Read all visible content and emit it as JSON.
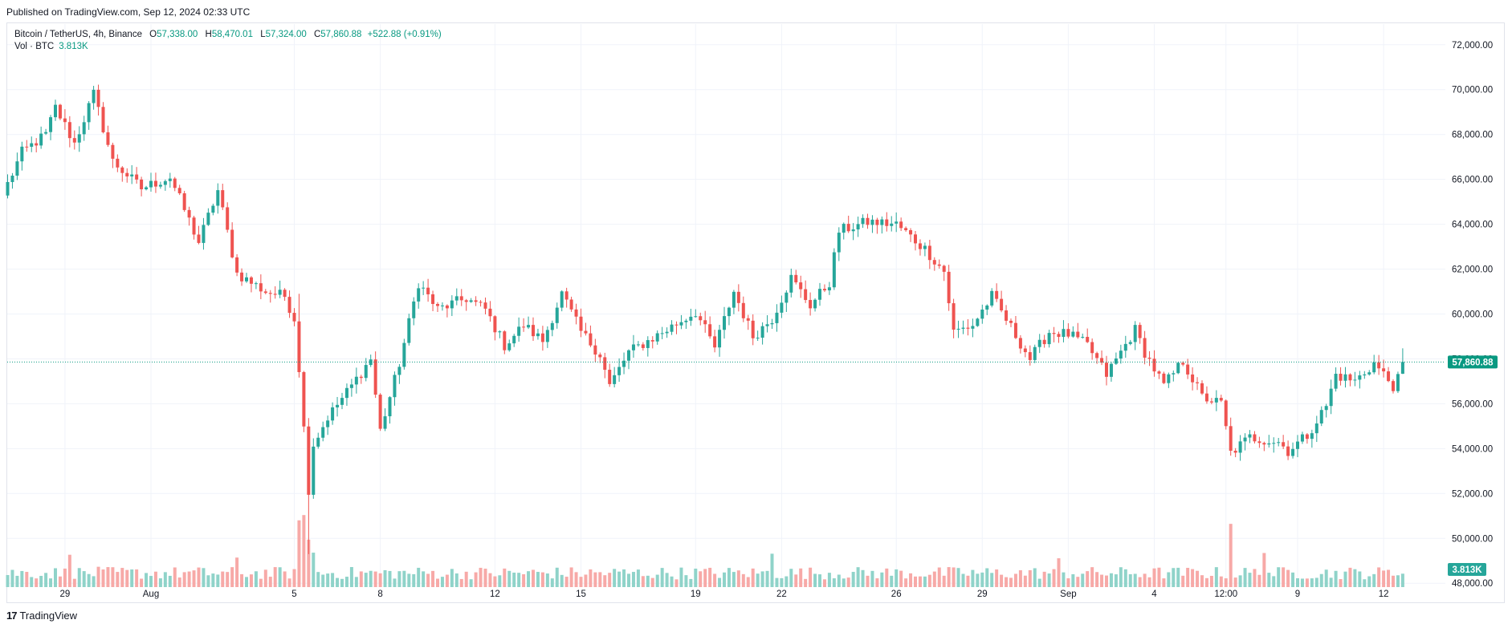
{
  "header": {
    "published": "Published on TradingView.com, Sep 12, 2024 02:33 UTC"
  },
  "legend": {
    "symbol": "Bitcoin / TetherUS, 4h, Binance",
    "open_label": "O",
    "open": "57,338.00",
    "high_label": "H",
    "high": "58,470.01",
    "low_label": "L",
    "low": "57,324.00",
    "close_label": "C",
    "close": "57,860.88",
    "change": "+522.88 (+0.91%)",
    "vol_title": "Vol · BTC",
    "vol_value": "3.813K"
  },
  "footer": {
    "logo_mark": "17",
    "brand": "TradingView"
  },
  "colors": {
    "up": "#26a69a",
    "down": "#ef5350",
    "vol_up": "#8fd3c9",
    "vol_down": "#f7a9a7",
    "grid": "#f0f3fa",
    "axis_text": "#131722",
    "last_price": "#089981"
  },
  "chart_data": {
    "type": "candlestick",
    "title": "Bitcoin / TetherUS, 4h, Binance",
    "interval": "4h",
    "y_axis": {
      "position": "right",
      "ticks": [
        48000,
        50000,
        52000,
        54000,
        56000,
        58000,
        60000,
        62000,
        64000,
        66000,
        68000,
        70000,
        72000
      ],
      "tick_labels": [
        "48,000.00",
        "50,000.00",
        "52,000.00",
        "54,000.00",
        "56,000.00",
        "58,000.00",
        "60,000.00",
        "62,000.00",
        "64,000.00",
        "66,000.00",
        "68,000.00",
        "70,000.00",
        "72,000.00"
      ],
      "range": [
        47400,
        72600
      ]
    },
    "x_axis": {
      "tick_labels": [
        "29",
        "Aug",
        "5",
        "8",
        "12",
        "15",
        "19",
        "22",
        "26",
        "29",
        "Sep",
        "4",
        "12:00",
        "9",
        "12"
      ],
      "tick_bar_index": [
        12,
        30,
        60,
        78,
        102,
        120,
        144,
        162,
        186,
        204,
        222,
        240,
        255,
        270,
        288
      ]
    },
    "last_price": 57860.88,
    "last_price_label": "57,860.88",
    "last_volume_label": "3.813K",
    "anchors": [
      [
        0,
        65800
      ],
      [
        3,
        67200
      ],
      [
        8,
        68000
      ],
      [
        10,
        69200
      ],
      [
        14,
        67600
      ],
      [
        18,
        69800
      ],
      [
        22,
        66800
      ],
      [
        28,
        65600
      ],
      [
        34,
        66100
      ],
      [
        40,
        63200
      ],
      [
        44,
        65500
      ],
      [
        48,
        61800
      ],
      [
        54,
        61000
      ],
      [
        58,
        60800
      ],
      [
        60,
        59800
      ],
      [
        61,
        57600
      ],
      [
        63,
        52200
      ],
      [
        64,
        54200
      ],
      [
        67,
        55400
      ],
      [
        72,
        56800
      ],
      [
        76,
        58000
      ],
      [
        78,
        54800
      ],
      [
        82,
        57800
      ],
      [
        84,
        59600
      ],
      [
        86,
        61400
      ],
      [
        90,
        60200
      ],
      [
        96,
        60700
      ],
      [
        100,
        60200
      ],
      [
        104,
        58600
      ],
      [
        108,
        59500
      ],
      [
        112,
        58800
      ],
      [
        116,
        60900
      ],
      [
        120,
        59200
      ],
      [
        124,
        58200
      ],
      [
        126,
        56800
      ],
      [
        130,
        58300
      ],
      [
        138,
        59300
      ],
      [
        144,
        60100
      ],
      [
        148,
        58500
      ],
      [
        152,
        61000
      ],
      [
        156,
        59000
      ],
      [
        160,
        59800
      ],
      [
        164,
        61600
      ],
      [
        168,
        60400
      ],
      [
        172,
        61400
      ],
      [
        174,
        63700
      ],
      [
        180,
        64100
      ],
      [
        186,
        64000
      ],
      [
        192,
        62900
      ],
      [
        196,
        61900
      ],
      [
        198,
        59200
      ],
      [
        202,
        59500
      ],
      [
        206,
        60800
      ],
      [
        210,
        59400
      ],
      [
        214,
        58000
      ],
      [
        218,
        59200
      ],
      [
        222,
        59100
      ],
      [
        226,
        58600
      ],
      [
        230,
        57300
      ],
      [
        236,
        59300
      ],
      [
        238,
        58300
      ],
      [
        242,
        56800
      ],
      [
        246,
        57900
      ],
      [
        250,
        56300
      ],
      [
        254,
        56000
      ],
      [
        256,
        53800
      ],
      [
        260,
        54500
      ],
      [
        266,
        54300
      ],
      [
        268,
        53900
      ],
      [
        272,
        54600
      ],
      [
        276,
        55900
      ],
      [
        278,
        57300
      ],
      [
        282,
        57000
      ],
      [
        286,
        57800
      ],
      [
        290,
        56800
      ],
      [
        292,
        57338
      ]
    ],
    "last_candle": {
      "open": 57338.0,
      "high": 58470.01,
      "low": 57324.0,
      "close": 57860.88,
      "volume": 3813
    },
    "volume_spikes": [
      [
        13,
        9200
      ],
      [
        48,
        8400
      ],
      [
        61,
        19000
      ],
      [
        62,
        20500
      ],
      [
        63,
        13500
      ],
      [
        64,
        9800
      ],
      [
        160,
        9500
      ],
      [
        220,
        8200
      ],
      [
        256,
        18000
      ],
      [
        263,
        9700
      ]
    ]
  }
}
